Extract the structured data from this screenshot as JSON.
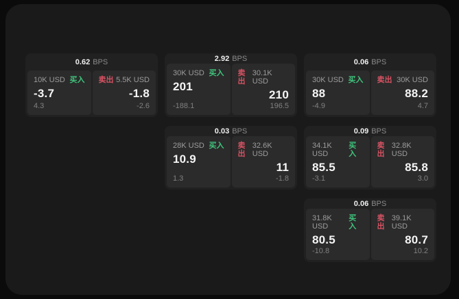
{
  "labels": {
    "buy": "买入",
    "sell": "卖出",
    "bps_unit": "BPS"
  },
  "colors": {
    "background_outer": "#0b0b0b",
    "background_page": "#1a1a1a",
    "card_background": "#212121",
    "panel_background": "#2b2b2b",
    "buy_accent": "#3fc47c",
    "sell_accent": "#d65263",
    "primary_text": "#f5f5f5",
    "secondary_text": "#9c9c9c"
  },
  "cards": [
    {
      "bps": "0.62",
      "buy": {
        "amount": "10K USD",
        "price": "-3.7",
        "delta": "4.3"
      },
      "sell": {
        "amount": "5.5K USD",
        "price": "-1.8",
        "delta": "-2.6"
      }
    },
    {
      "bps": "2.92",
      "buy": {
        "amount": "30K USD",
        "price": "201",
        "delta": "-188.1"
      },
      "sell": {
        "amount": "30.1K USD",
        "price": "210",
        "delta": "196.5"
      }
    },
    {
      "bps": "0.06",
      "buy": {
        "amount": "30K USD",
        "price": "88",
        "delta": "-4.9"
      },
      "sell": {
        "amount": "30K USD",
        "price": "88.2",
        "delta": "4.7"
      }
    },
    {
      "bps": "0.03",
      "buy": {
        "amount": "28K USD",
        "price": "10.9",
        "delta": "1.3"
      },
      "sell": {
        "amount": "32.6K USD",
        "price": "11",
        "delta": "-1.8"
      }
    },
    {
      "bps": "0.09",
      "buy": {
        "amount": "34.1K USD",
        "price": "85.5",
        "delta": "-3.1"
      },
      "sell": {
        "amount": "32.8K USD",
        "price": "85.8",
        "delta": "3.0"
      }
    },
    {
      "bps": "0.06",
      "buy": {
        "amount": "31.8K USD",
        "price": "80.5",
        "delta": "-10.8"
      },
      "sell": {
        "amount": "39.1K USD",
        "price": "80.7",
        "delta": "10.2"
      }
    }
  ]
}
